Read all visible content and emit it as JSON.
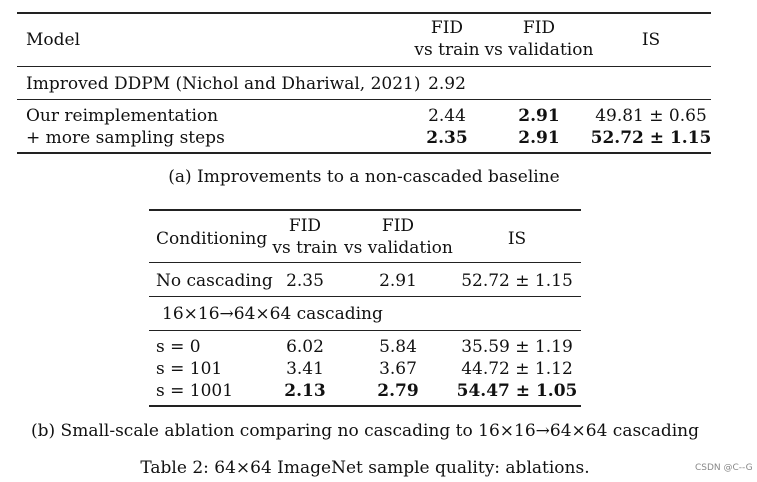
{
  "table_a": {
    "headers": {
      "model": "Model",
      "fid_train_1": "FID",
      "fid_train_2": "vs train",
      "fid_val_1": "FID",
      "fid_val_2": "vs validation",
      "is": "IS"
    },
    "rows": [
      {
        "model": "Improved DDPM (Nichol and Dhariwal, 2021)",
        "fid_train": "2.92",
        "fid_val": "",
        "is": ""
      },
      {
        "model": "Our reimplementation",
        "fid_train": "2.44",
        "fid_val": "2.91",
        "is": "49.81 ± 0.65"
      },
      {
        "model": "+ more sampling steps",
        "fid_train": "2.35",
        "fid_val": "2.91",
        "is": "52.72 ± 1.15"
      }
    ],
    "caption": "(a) Improvements to a non-cascaded baseline"
  },
  "table_b": {
    "headers": {
      "conditioning": "Conditioning",
      "fid_train_1": "FID",
      "fid_train_2": "vs train",
      "fid_val_1": "FID",
      "fid_val_2": "vs validation",
      "is": "IS"
    },
    "row_no_cascade": {
      "cond": "No cascading",
      "fid_train": "2.35",
      "fid_val": "2.91",
      "is": "52.72 ± 1.15"
    },
    "section_label": "16×16→64×64 cascading",
    "rows": [
      {
        "cond": "s = 0",
        "fid_train": "6.02",
        "fid_val": "5.84",
        "is": "35.59 ± 1.19"
      },
      {
        "cond": "s = 101",
        "fid_train": "3.41",
        "fid_val": "3.67",
        "is": "44.72 ± 1.12"
      },
      {
        "cond": "s = 1001",
        "fid_train": "2.13",
        "fid_val": "2.79",
        "is": "54.47 ± 1.05"
      }
    ],
    "caption": "(b) Small-scale ablation comparing no cascading to 16×16→64×64 cascading"
  },
  "table_caption": "Table 2: 64×64 ImageNet sample quality: ablations.",
  "watermark": "CSDN @C--G"
}
